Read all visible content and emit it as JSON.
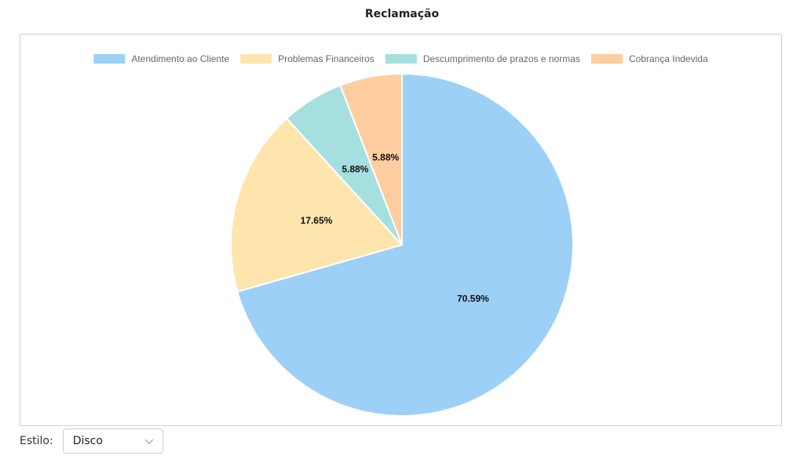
{
  "title": "Reclamação",
  "chart_data": {
    "type": "pie",
    "categories": [
      "Atendimento ao Cliente",
      "Problemas Financeiros",
      "Descumprimento de prazos e normas",
      "Cobrança Indevida"
    ],
    "values": [
      70.59,
      17.65,
      5.88,
      5.88
    ],
    "labels": [
      "70.59%",
      "17.65%",
      "5.88%",
      "5.88%"
    ],
    "colors": [
      "#9dd0f6",
      "#fde5ad",
      "#a6dfe0",
      "#ffcda0"
    ],
    "legend": "top"
  },
  "controls": {
    "style_label": "Estilo:",
    "style_value": "Disco"
  }
}
